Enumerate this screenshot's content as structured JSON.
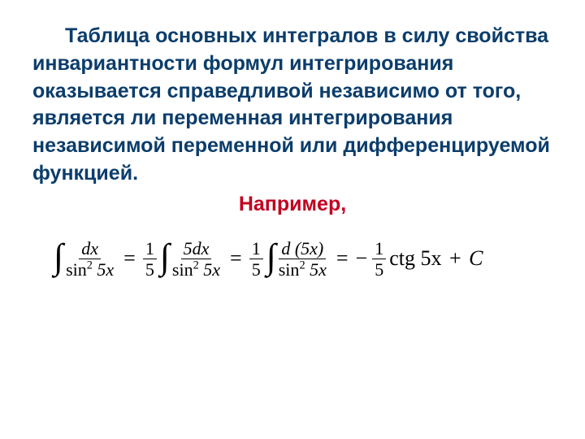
{
  "colors": {
    "text_main": "#0b3d6b",
    "text_accent": "#c10020",
    "formula": "#000000",
    "background": "#ffffff"
  },
  "typography": {
    "body_font": "Arial",
    "body_size_pt": 19,
    "body_weight": "bold",
    "formula_font": "Times New Roman",
    "formula_size_pt": 20
  },
  "body_text": "Таблица основных интегралов в силу свойства инвариантности формул интегрирования оказывается справедливой независимо от того, является ли переменная интегрирования независимой переменной или дифференцируемой функцией.",
  "example_label": "Например,",
  "formula": {
    "step1": {
      "num": "dx",
      "den_left": "sin",
      "den_exp": "2",
      "den_arg": " 5x"
    },
    "coeff": {
      "num": "1",
      "den": "5"
    },
    "step2": {
      "num": "5dx",
      "den_left": "sin",
      "den_exp": "2",
      "den_arg": " 5x"
    },
    "step3": {
      "num": "d (5x)",
      "den_left": "sin",
      "den_exp": "2",
      "den_arg": " 5x"
    },
    "result_func": "ctg 5x",
    "result_const": "C",
    "eq": "=",
    "minus": "−",
    "plus": "+"
  }
}
